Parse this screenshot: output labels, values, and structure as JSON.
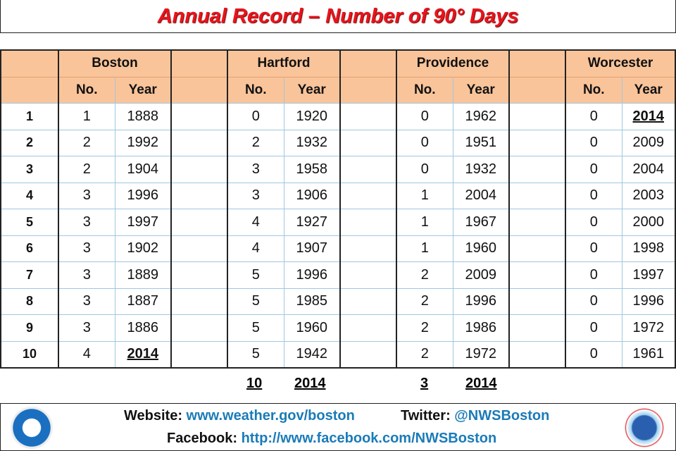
{
  "title": "Annual Record – Number of 90° Days",
  "table": {
    "cities": [
      "Boston",
      "Hartford",
      "Providence",
      "Worcester"
    ],
    "subheaders": [
      "No.",
      "Year"
    ],
    "rows": [
      {
        "rank": "1",
        "values": [
          [
            "1",
            "1888"
          ],
          [
            "0",
            "1920"
          ],
          [
            "0",
            "1962"
          ],
          [
            "0",
            "2014"
          ]
        ]
      },
      {
        "rank": "2",
        "values": [
          [
            "2",
            "1992"
          ],
          [
            "2",
            "1932"
          ],
          [
            "0",
            "1951"
          ],
          [
            "0",
            "2009"
          ]
        ]
      },
      {
        "rank": "3",
        "values": [
          [
            "2",
            "1904"
          ],
          [
            "3",
            "1958"
          ],
          [
            "0",
            "1932"
          ],
          [
            "0",
            "2004"
          ]
        ]
      },
      {
        "rank": "4",
        "values": [
          [
            "3",
            "1996"
          ],
          [
            "3",
            "1906"
          ],
          [
            "1",
            "2004"
          ],
          [
            "0",
            "2003"
          ]
        ]
      },
      {
        "rank": "5",
        "values": [
          [
            "3",
            "1997"
          ],
          [
            "4",
            "1927"
          ],
          [
            "1",
            "1967"
          ],
          [
            "0",
            "2000"
          ]
        ]
      },
      {
        "rank": "6",
        "values": [
          [
            "3",
            "1902"
          ],
          [
            "4",
            "1907"
          ],
          [
            "1",
            "1960"
          ],
          [
            "0",
            "1998"
          ]
        ]
      },
      {
        "rank": "7",
        "values": [
          [
            "3",
            "1889"
          ],
          [
            "5",
            "1996"
          ],
          [
            "2",
            "2009"
          ],
          [
            "0",
            "1997"
          ]
        ]
      },
      {
        "rank": "8",
        "values": [
          [
            "3",
            "1887"
          ],
          [
            "5",
            "1985"
          ],
          [
            "2",
            "1996"
          ],
          [
            "0",
            "1996"
          ]
        ]
      },
      {
        "rank": "9",
        "values": [
          [
            "3",
            "1886"
          ],
          [
            "5",
            "1960"
          ],
          [
            "2",
            "1986"
          ],
          [
            "0",
            "1972"
          ]
        ]
      },
      {
        "rank": "10",
        "values": [
          [
            "4",
            "2014"
          ],
          [
            "5",
            "1942"
          ],
          [
            "2",
            "1972"
          ],
          [
            "0",
            "1961"
          ]
        ]
      }
    ],
    "highlight_year": "2014"
  },
  "current": {
    "hartford": {
      "no": "10",
      "year": "2014"
    },
    "providence": {
      "no": "3",
      "year": "2014"
    }
  },
  "footer": {
    "website_label": "Website:",
    "website": "www.weather.gov/boston",
    "twitter_label": "Twitter:",
    "twitter": "@NWSBoston",
    "facebook_label": "Facebook:",
    "facebook": "http://www.facebook.com/NWSBoston",
    "logos": [
      "NOAA",
      "National Weather Service"
    ]
  },
  "colors": {
    "title": "#e8141c",
    "header": "#f9c49a",
    "link": "#1a7bb8"
  }
}
